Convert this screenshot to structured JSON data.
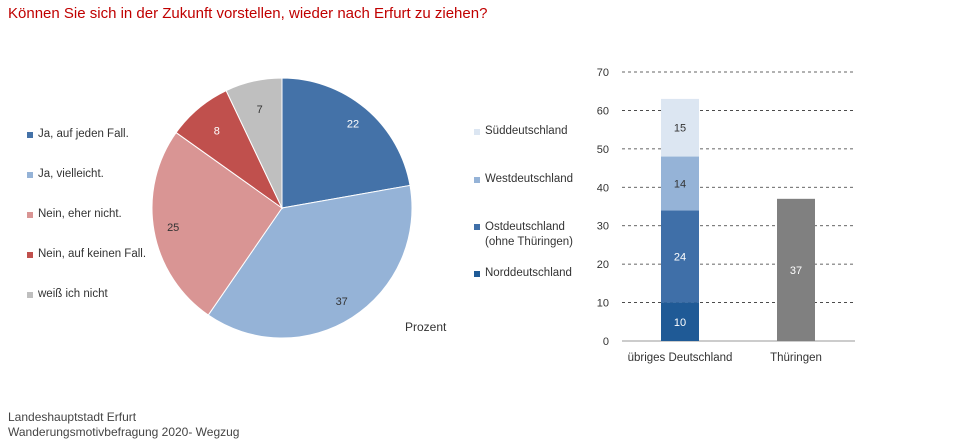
{
  "title": "Können Sie sich in der Zukunft vorstellen, wieder nach Erfurt zu ziehen?",
  "footer": {
    "line1": "Landeshauptstadt Erfurt",
    "line2": "Wanderungsmotivbefragung 2020- Wegzug"
  },
  "unit_label": "Prozent",
  "colors": {
    "title": "#c00000",
    "ja_jeden_fall": "#4472a8",
    "ja_vielleicht": "#95b3d7",
    "nein_eher_nicht": "#d99594",
    "nein_keinen_fall": "#c0504d",
    "weiss_nicht": "#bfbfbf",
    "sueddeutschland": "#dce6f2",
    "westdeutschland": "#95b3d7",
    "ostdeutschland": "#3f6fa8",
    "norddeutschland": "#1f5a96",
    "thueringen": "#808080"
  },
  "chart_data": [
    {
      "type": "pie",
      "slices": [
        {
          "label": "Ja, auf jeden Fall.",
          "value": 22,
          "color": "#4472a8"
        },
        {
          "label": "Ja, vielleicht.",
          "value": 37,
          "color": "#95b3d7"
        },
        {
          "label": "Nein, eher nicht.",
          "value": 25,
          "color": "#d99594"
        },
        {
          "label": "Nein, auf keinen Fall.",
          "value": 8,
          "color": "#c0504d"
        },
        {
          "label": "weiß ich nicht",
          "value": 7,
          "color": "#bfbfbf"
        }
      ],
      "legend": [
        "Ja, auf jeden Fall.",
        "Ja, vielleicht.",
        "Nein, eher nicht.",
        "Nein, auf keinen Fall.",
        "weiß ich nicht"
      ]
    },
    {
      "type": "bar",
      "stacked": true,
      "categories": [
        "übriges Deutschland",
        "Thüringen"
      ],
      "series": [
        {
          "name": "Norddeutschland",
          "values": [
            10,
            null
          ],
          "color": "#1f5a96"
        },
        {
          "name": "Ostdeutschland (ohne Thüringen)",
          "values": [
            24,
            null
          ],
          "color": "#3f6fa8"
        },
        {
          "name": "Westdeutschland",
          "values": [
            14,
            null
          ],
          "color": "#95b3d7"
        },
        {
          "name": "Süddeutschland",
          "values": [
            15,
            null
          ],
          "color": "#dce6f2"
        },
        {
          "name": "Thüringen",
          "values": [
            null,
            37
          ],
          "color": "#808080"
        }
      ],
      "legend": [
        {
          "lines": [
            "Süddeutschland"
          ],
          "color": "#dce6f2"
        },
        {
          "lines": [
            "Westdeutschland"
          ],
          "color": "#95b3d7"
        },
        {
          "lines": [
            "Ostdeutschland",
            "(ohne Thüringen)"
          ],
          "color": "#3f6fa8"
        },
        {
          "lines": [
            "Norddeutschland"
          ],
          "color": "#1f5a96"
        }
      ],
      "ylim": [
        0,
        70
      ],
      "yticks": [
        0,
        10,
        20,
        30,
        40,
        50,
        60,
        70
      ],
      "grid": "dashed horizontal"
    }
  ]
}
